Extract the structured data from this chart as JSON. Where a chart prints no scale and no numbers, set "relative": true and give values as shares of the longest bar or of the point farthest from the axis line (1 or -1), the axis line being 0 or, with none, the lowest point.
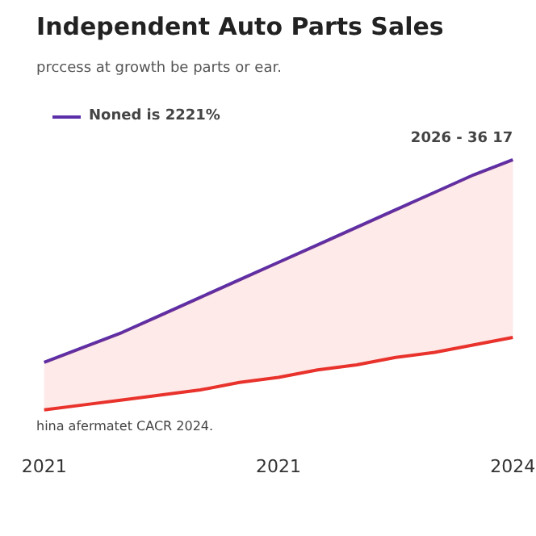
{
  "chart_data": {
    "type": "line",
    "title": "Independent Auto Parts Sales",
    "subtitle": "prccess at growth be parts or ear.",
    "categories": [
      "2021",
      null,
      null,
      null,
      null,
      null,
      "2021",
      null,
      null,
      null,
      null,
      null,
      "2024"
    ],
    "relative": true,
    "legend": "top left",
    "series": [
      {
        "name": "Noned is 2221%",
        "color": "#5b2fa8",
        "values": [
          0.19,
          0.25,
          0.31,
          0.38,
          0.45,
          0.52,
          0.59,
          0.66,
          0.73,
          0.8,
          0.87,
          0.94,
          1.0
        ]
      },
      {
        "color": "#e8322b",
        "values": [
          0,
          0.02,
          0.04,
          0.06,
          0.08,
          0.11,
          0.13,
          0.16,
          0.18,
          0.21,
          0.23,
          0.26,
          0.29
        ],
        "lower": [
          0,
          0.02,
          0.04,
          0.06,
          0.08,
          0.11,
          0.13,
          0.16,
          0.18,
          0.21,
          0.23,
          0.26,
          0.29
        ],
        "upper": [
          0.19,
          0.25,
          0.31,
          0.38,
          0.45,
          0.52,
          0.59,
          0.66,
          0.73,
          0.8,
          0.87,
          0.94,
          1.0
        ]
      }
    ],
    "annotations": [
      "2026 - 36 17",
      "hina afermatet CACR 2024."
    ]
  }
}
